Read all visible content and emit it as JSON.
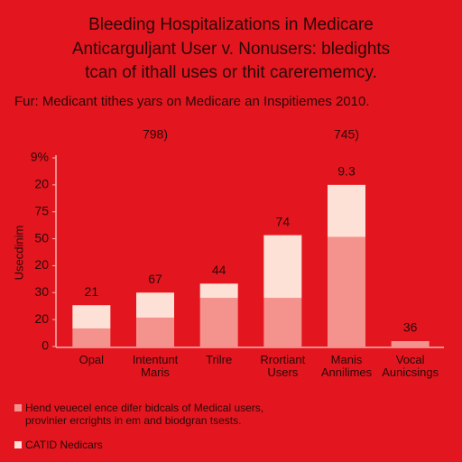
{
  "chart_data": {
    "type": "bar",
    "stacked": true,
    "title": [
      "Bleeding Hospitalizations in Medicare",
      "Anticarguljant User v. Nonusers: bledights",
      "tcan of ithall uses or thit carerememcy."
    ],
    "subtitle": "Fur: Medicant tithes yars on Medicare an Inspitiemes 2010.",
    "ylabel": "Usecdinim",
    "categories": [
      "Opal",
      "Intentunt\nMaris",
      "Trilre",
      "Rrortiant\nUsers",
      "Manis\nAnnilimes",
      "Vocal\nAunicsings"
    ],
    "series": [
      {
        "name": "Hend veuecel ence difer bidcals of Medical users,\nprovinier ercrights in em and biodgran tsests.",
        "color": "#f4928e",
        "values": [
          10,
          16,
          27,
          27,
          61,
          3
        ]
      },
      {
        "name": "CATID Nedicars",
        "color": "#fde1d6",
        "values": [
          13,
          14,
          8,
          35,
          29,
          0
        ]
      }
    ],
    "bar_labels": [
      "21",
      "67",
      "44",
      "74",
      "9.3",
      "36"
    ],
    "header_labels": [
      null,
      "798)",
      null,
      null,
      "745)",
      null
    ],
    "ylim": [
      0,
      105
    ],
    "yticks": [
      0,
      {
        "value": 15,
        "label": "20"
      },
      30,
      {
        "value": 45,
        "label": "20"
      },
      {
        "value": 60,
        "label": "50"
      },
      75,
      {
        "value": 90,
        "label": "20"
      },
      {
        "value": 105,
        "label": "9%"
      }
    ]
  }
}
